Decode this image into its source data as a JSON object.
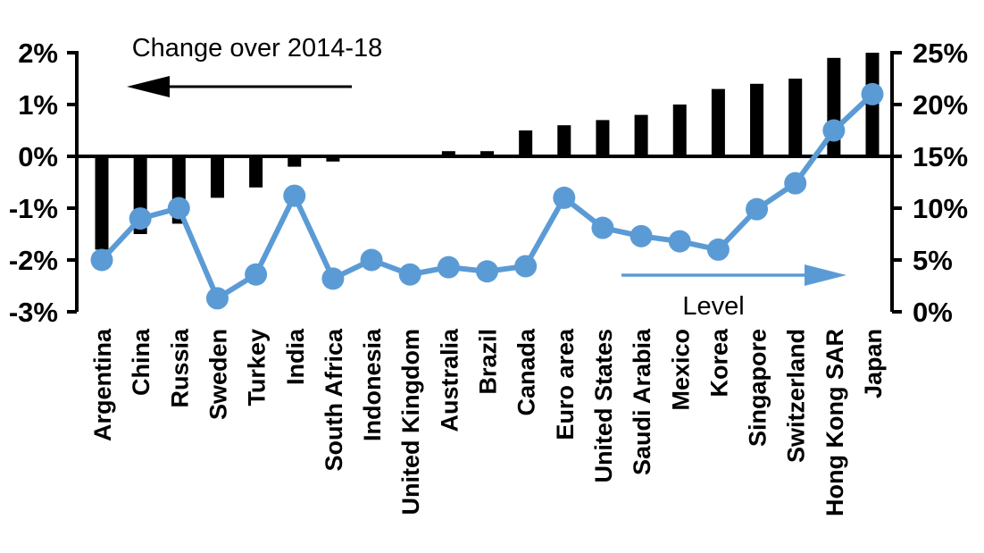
{
  "chart_data": {
    "type": "bar",
    "subtype": "combo-bar-line-dual-axis",
    "title": "",
    "categories": [
      "Argentina",
      "China",
      "Russia",
      "Sweden",
      "Turkey",
      "India",
      "South Africa",
      "Indonesia",
      "United Kingdom",
      "Australia",
      "Brazil",
      "Canada",
      "Euro area",
      "United States",
      "Saudi Arabia",
      "Mexico",
      "Korea",
      "Singapore",
      "Switzerland",
      "Hong Kong SAR",
      "Japan"
    ],
    "series": [
      {
        "name": "Change over 2014-18",
        "type": "bar",
        "axis": "left",
        "color": "#000000",
        "values": [
          -1.8,
          -1.5,
          -1.3,
          -0.8,
          -0.6,
          -0.2,
          -0.1,
          0,
          0,
          0.1,
          0.1,
          0.5,
          0.6,
          0.7,
          0.8,
          1.0,
          1.3,
          1.4,
          1.5,
          1.9,
          2.0
        ]
      },
      {
        "name": "Level",
        "type": "line",
        "axis": "right",
        "color": "#5B9BD5",
        "values": [
          5.0,
          9.0,
          10.0,
          1.3,
          3.6,
          11.2,
          3.2,
          5.0,
          3.6,
          4.3,
          3.9,
          4.4,
          11.0,
          8.1,
          7.3,
          6.8,
          6.0,
          9.9,
          12.4,
          17.5,
          21.0
        ]
      }
    ],
    "left_axis": {
      "min": -3,
      "max": 2,
      "unit": "%",
      "ticks": [
        "2%",
        "1%",
        "0%",
        "-1%",
        "-2%",
        "-3%"
      ],
      "tick_values": [
        2,
        1,
        0,
        -1,
        -2,
        -3
      ]
    },
    "right_axis": {
      "min": 0,
      "max": 25,
      "unit": "%",
      "ticks": [
        "25%",
        "20%",
        "15%",
        "10%",
        "5%",
        "0%"
      ],
      "tick_values": [
        25,
        20,
        15,
        10,
        5,
        0
      ]
    },
    "annotations": {
      "change_arrow_label": "Change over 2014-18",
      "change_arrow_direction": "left",
      "level_arrow_label": "Level",
      "level_arrow_direction": "right"
    },
    "grid": false,
    "legend_position": "none"
  },
  "colors": {
    "bar": "#000000",
    "line": "#5B9BD5",
    "axis": "#000000",
    "background": "#FFFFFF",
    "text": "#000000"
  }
}
